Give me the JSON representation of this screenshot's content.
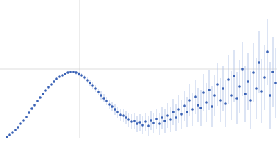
{
  "chart_data": {
    "type": "scatter",
    "x": [
      10,
      14,
      18,
      22,
      26,
      30,
      34,
      38,
      42,
      46,
      50,
      54,
      58,
      62,
      66,
      70,
      74,
      78,
      82,
      86,
      90,
      94,
      98,
      102,
      106,
      110,
      114,
      118,
      122,
      126,
      130,
      134,
      138,
      142,
      146,
      150,
      154,
      158,
      162,
      166,
      170,
      174,
      178,
      182,
      186,
      190,
      194,
      198,
      202,
      206,
      210,
      214,
      218,
      222,
      226,
      230,
      234,
      238,
      242,
      246,
      250,
      254,
      258,
      262,
      266,
      270,
      274,
      278,
      282,
      286,
      290,
      294,
      298,
      302,
      306,
      310,
      314,
      318,
      322,
      326,
      330,
      334,
      338,
      342,
      346,
      350,
      354,
      358,
      362,
      366,
      370,
      374,
      378,
      382,
      386,
      390,
      394,
      398
    ],
    "values": [
      2,
      5,
      8,
      12,
      16,
      21,
      26,
      31,
      37,
      43,
      48,
      54,
      59,
      64,
      69,
      74,
      78,
      82,
      86,
      89,
      91,
      93,
      95,
      96,
      96,
      95,
      93,
      91,
      88,
      84,
      80,
      76,
      72,
      67,
      62,
      58,
      54,
      49,
      46,
      42,
      38,
      34,
      33,
      30,
      27,
      24,
      25,
      21,
      23,
      19,
      24,
      18,
      26,
      22,
      28,
      21,
      30,
      25,
      33,
      27,
      38,
      30,
      42,
      35,
      47,
      38,
      55,
      42,
      60,
      48,
      44,
      66,
      52,
      70,
      46,
      62,
      78,
      55,
      72,
      50,
      85,
      62,
      90,
      58,
      75,
      100,
      64,
      82,
      55,
      95,
      72,
      110,
      68,
      88,
      125,
      62,
      96,
      80
    ],
    "errors": [
      1,
      1,
      1,
      1,
      1,
      1,
      1,
      1,
      1,
      1,
      1,
      1,
      1,
      1,
      1,
      1,
      1,
      1,
      1,
      1,
      1,
      1,
      1,
      2,
      2,
      3,
      3,
      3,
      4,
      4,
      4,
      5,
      5,
      5,
      6,
      6,
      6,
      7,
      7,
      8,
      8,
      9,
      9,
      10,
      10,
      11,
      11,
      12,
      12,
      13,
      13,
      14,
      14,
      15,
      15,
      16,
      16,
      17,
      18,
      18,
      19,
      20,
      20,
      21,
      22,
      22,
      23,
      24,
      25,
      25,
      26,
      27,
      28,
      29,
      30,
      30,
      31,
      32,
      33,
      34,
      35,
      36,
      37,
      38,
      38,
      39,
      40,
      41,
      42,
      43,
      44,
      45,
      46,
      47,
      48,
      49,
      50,
      50
    ],
    "color": "#3a62b5",
    "error_color": "#b9c9e8",
    "xlim": [
      0,
      400
    ],
    "ylim": [
      0,
      200
    ],
    "xticks": [
      115
    ],
    "yticks": [
      100
    ],
    "grid": true
  }
}
